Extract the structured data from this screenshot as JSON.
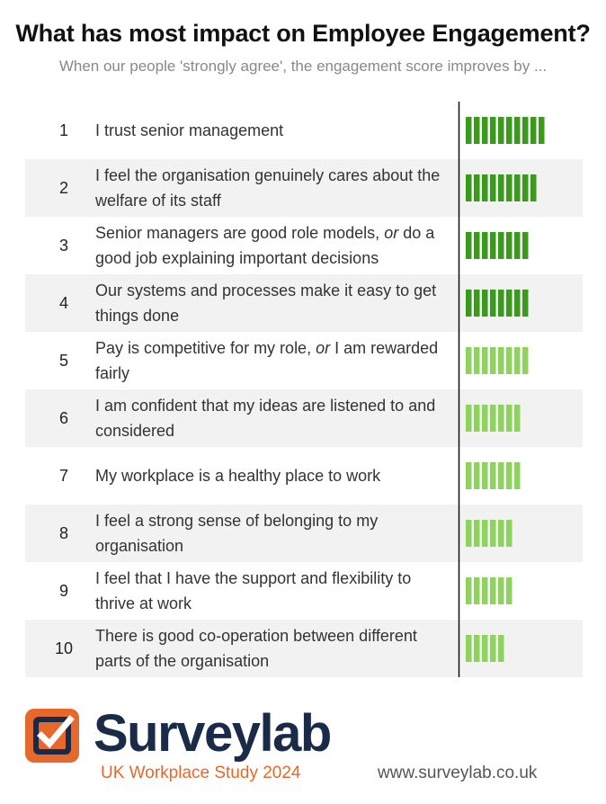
{
  "header": {
    "title": "What has most impact on Employee Engagement?",
    "subtitle": "When our people 'strongly agree', the engagement score improves by ..."
  },
  "colors": {
    "band": "#f2f2f2",
    "dark_green": "#3a9a1c",
    "light_green": "#8fd35f",
    "divider": "#111111",
    "brand_navy": "#1a2b49",
    "brand_orange": "#e8672a"
  },
  "chart_data": {
    "type": "bar",
    "categories": [
      "1",
      "2",
      "3",
      "4",
      "5",
      "6",
      "7",
      "8",
      "9",
      "10"
    ],
    "statements": [
      "I trust senior management",
      "I feel the organisation genuinely cares about the welfare of its staff",
      "Senior managers are good role models, <em>or</em> do a good job explaining important decisions",
      "Our systems and processes make it easy to get things done",
      "Pay is competitive for my role, <em>or</em> I am rewarded fairly",
      "I am confident that my ideas are listened to and considered",
      "My workplace is a healthy place to work",
      "I feel a strong sense of belonging to my organisation",
      "I feel that I have the support and flexibility to thrive at work",
      "There is good co-operation between different parts of the organisation"
    ],
    "values": [
      10,
      9,
      8,
      8,
      8,
      7,
      7,
      6,
      6,
      5
    ],
    "shade": [
      "dark",
      "dark",
      "dark",
      "dark",
      "light",
      "light",
      "light",
      "light",
      "light",
      "light"
    ],
    "banded_rows": [
      2,
      4,
      6,
      8,
      10
    ]
  },
  "footer": {
    "brand": "Surveylab",
    "logo_icon": "checkbox-check-icon",
    "study": "UK Workplace Study 2024",
    "url": "www.surveylab.co.uk"
  }
}
